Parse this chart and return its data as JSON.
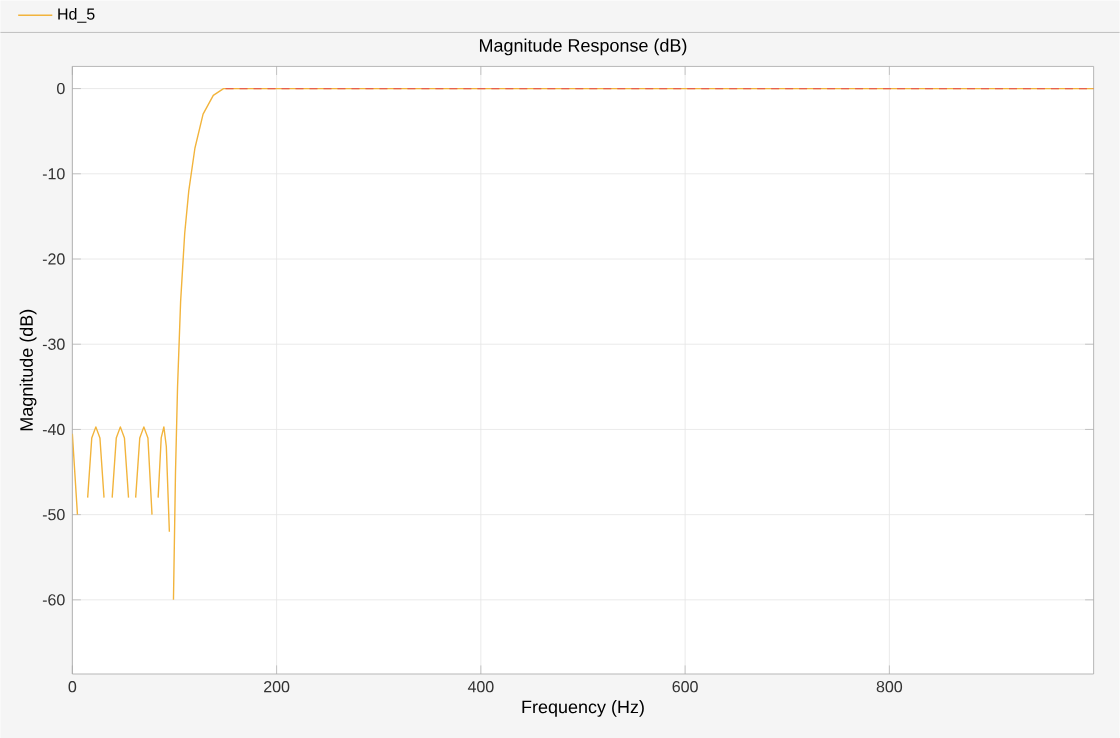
{
  "chart_data": {
    "type": "line",
    "title": "Magnitude Response (dB)",
    "xlabel": "Frequency (Hz)",
    "ylabel": "Magnitude (dB)",
    "xlim": [
      0,
      1000
    ],
    "ylim": [
      -68.7,
      2.6
    ],
    "xticks": [
      0,
      200,
      400,
      600,
      800
    ],
    "yticks": [
      -60,
      -50,
      -40,
      -30,
      -20,
      -10,
      0
    ],
    "grid": true,
    "legend": "top left",
    "marker": "none",
    "series": [
      {
        "name": "Hd_5",
        "color": "#f2b43c",
        "line_style": "solid",
        "x": [
          0,
          5,
          9.8,
          15,
          19,
          23,
          27,
          31,
          34.7,
          39,
          43,
          47,
          51,
          55,
          58.2,
          62,
          66,
          70,
          74,
          78,
          81,
          84,
          87,
          89.6,
          92,
          95,
          97.4,
          99,
          101,
          103,
          106,
          110,
          114,
          120,
          128,
          138,
          148,
          200,
          250,
          300,
          350,
          400,
          450,
          500,
          550,
          600,
          650,
          700,
          750,
          800,
          850,
          900,
          950,
          1000
        ],
        "values": [
          -40.5,
          -50,
          null,
          -48,
          -41,
          -39.7,
          -41,
          -48,
          null,
          -48,
          -41,
          -39.7,
          -41,
          -48,
          null,
          -48,
          -41,
          -39.7,
          -41,
          -50,
          null,
          -48,
          -41,
          -39.7,
          -42,
          -52,
          null,
          -60,
          -45,
          -35,
          -25,
          -17,
          -12,
          -7,
          -3,
          -0.8,
          0,
          0,
          0,
          0,
          0,
          0,
          0,
          0,
          0,
          0,
          0,
          0,
          0,
          0,
          0,
          0,
          0,
          0
        ]
      },
      {
        "color": "#e8604c",
        "line_style": "dashed",
        "x": [
          150,
          1000
        ],
        "values": [
          0,
          0
        ]
      }
    ]
  }
}
